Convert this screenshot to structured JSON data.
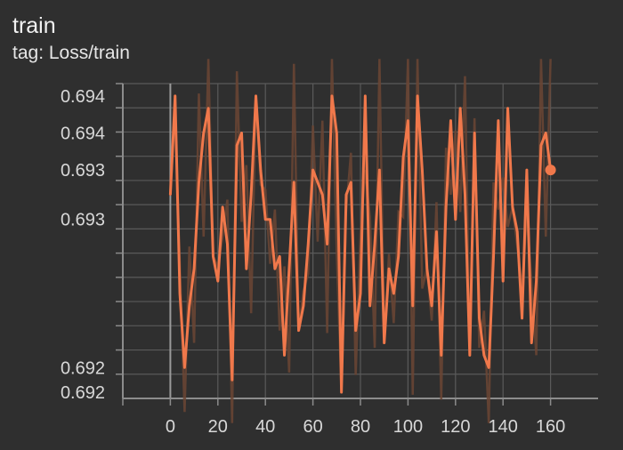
{
  "header": {
    "title": "train",
    "subtitle": "tag: Loss/train"
  },
  "colors": {
    "background": "#2f2f2f",
    "grid": "#5a5a5a",
    "axis": "#8c8c8c",
    "smoothed": "#f0784b",
    "raw": "#6b4534"
  },
  "chart_data": {
    "type": "line",
    "title": "train",
    "subtitle": "tag: Loss/train",
    "xlabel": "",
    "ylabel": "",
    "xlim": [
      -20,
      180
    ],
    "ylim": [
      0.69165,
      0.6942
    ],
    "x_ticks": [
      0,
      20,
      40,
      60,
      80,
      100,
      120,
      140,
      160
    ],
    "y_ticks": [
      {
        "value": 0.6917,
        "label": "0.692"
      },
      {
        "value": 0.6919,
        "label": "0.692"
      },
      {
        "value": 0.6931,
        "label": "0.693"
      },
      {
        "value": 0.6935,
        "label": "0.693"
      },
      {
        "value": 0.6938,
        "label": "0.694"
      },
      {
        "value": 0.6941,
        "label": "0.694"
      }
    ],
    "grid": true,
    "legend": "none",
    "series": [
      {
        "x": [
          0,
          2,
          4,
          6,
          8,
          10,
          12,
          14,
          16,
          18,
          20,
          22,
          24,
          26,
          28,
          30,
          32,
          34,
          36,
          38,
          40,
          42,
          44,
          46,
          48,
          50,
          52,
          54,
          56,
          58,
          60,
          62,
          64,
          66,
          68,
          70,
          72,
          74,
          76,
          78,
          80,
          82,
          84,
          86,
          88,
          90,
          92,
          94,
          96,
          98,
          100,
          102,
          104,
          106,
          108,
          110,
          112,
          114,
          116,
          118,
          120,
          122,
          124,
          126,
          128,
          130,
          132,
          134,
          136,
          138,
          140,
          142,
          144,
          146,
          148,
          150,
          152,
          154,
          156,
          158,
          160
        ],
        "y": [
          0.6933,
          0.6941,
          0.6925,
          0.6919,
          0.6924,
          0.6927,
          0.6934,
          0.6938,
          0.694,
          0.6928,
          0.6926,
          0.6932,
          0.6929,
          0.6918,
          0.6937,
          0.6938,
          0.6927,
          0.6933,
          0.6941,
          0.6935,
          0.6931,
          0.6931,
          0.6927,
          0.6928,
          0.692,
          0.6927,
          0.6934,
          0.6922,
          0.6924,
          0.6929,
          0.6935,
          0.6934,
          0.6933,
          0.6929,
          0.6941,
          0.6938,
          0.6917,
          0.6933,
          0.6934,
          0.6922,
          0.6925,
          0.6941,
          0.6924,
          0.6929,
          0.6935,
          0.6921,
          0.6927,
          0.6925,
          0.6928,
          0.6936,
          0.6939,
          0.6924,
          0.6941,
          0.6935,
          0.6927,
          0.6924,
          0.693,
          0.692,
          0.6932,
          0.6939,
          0.6931,
          0.694,
          0.6933,
          0.692,
          0.6938,
          0.6923,
          0.692,
          0.6919,
          0.6928,
          0.6939,
          0.6926,
          0.694,
          0.6932,
          0.693,
          0.6923,
          0.6935,
          0.6921,
          0.6926,
          0.6937,
          0.6938,
          0.6935
        ]
      }
    ]
  }
}
